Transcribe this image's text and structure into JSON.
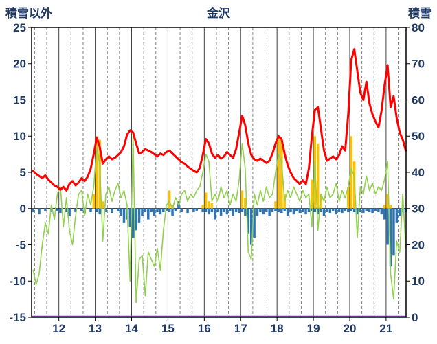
{
  "chart_data": {
    "type": "combo",
    "title": "金沢",
    "left_axis_title": "積雪以外",
    "right_axis_title": "積雪",
    "x_axis": {
      "min": 2011.25,
      "max": 2021.55,
      "tick_years": [
        2012,
        2013,
        2014,
        2015,
        2016,
        2017,
        2018,
        2019,
        2020,
        2021
      ],
      "tick_labels": [
        "12",
        "13",
        "14",
        "15",
        "16",
        "17",
        "18",
        "19",
        "20",
        "21"
      ]
    },
    "left_axis": {
      "min": -15,
      "max": 25,
      "step": 5,
      "ticks": [
        25,
        20,
        15,
        10,
        5,
        0,
        -5,
        -10,
        -15
      ]
    },
    "right_axis": {
      "min": 0,
      "max": 80,
      "step": 10,
      "ticks": [
        80,
        70,
        60,
        50,
        40,
        30,
        20,
        10,
        0
      ]
    },
    "x_start": 2011.292,
    "x_step": 0.083333,
    "grid": {
      "vertical_solid_color": "#404040",
      "vertical_dashed_color": "#808080",
      "zero_line_color": "#000000",
      "border_color": "#000000"
    },
    "series": [
      {
        "name": "snow-bars",
        "type": "bar",
        "axis": "left",
        "color": "#FFC000",
        "values": [
          0,
          0,
          0,
          0,
          0,
          0,
          0,
          0,
          0,
          0,
          0,
          0,
          0,
          0,
          0,
          0,
          0,
          0,
          0,
          0,
          2.0,
          10.0,
          9.5,
          1.0,
          0,
          0,
          0,
          0,
          0,
          0,
          0,
          0,
          0,
          0,
          0,
          0,
          0,
          0,
          0,
          0,
          0,
          0,
          0,
          0,
          0,
          2.5,
          0.5,
          0,
          0,
          0,
          0,
          0,
          0,
          0,
          0,
          0,
          0.5,
          2.2,
          1.0,
          0.8,
          0,
          0,
          0,
          0,
          0,
          0,
          0,
          0,
          0,
          2.5,
          1.5,
          0,
          0,
          0,
          0,
          0,
          0,
          0,
          0,
          0,
          1.0,
          9.8,
          9.5,
          2.0,
          0,
          0,
          0,
          0,
          0,
          0,
          0,
          0,
          4.0,
          10.0,
          9.0,
          2.0,
          0,
          0,
          0,
          0,
          0,
          0,
          0,
          0,
          3.0,
          10.0,
          6.5,
          0,
          0,
          0,
          0,
          0,
          0,
          0,
          0,
          0,
          0.5,
          2.0,
          0.5,
          0,
          0,
          0,
          0,
          0
        ]
      },
      {
        "name": "blue-bars",
        "type": "bar",
        "axis": "left",
        "color": "#2E75B6",
        "values": [
          -0.5,
          0,
          -0.8,
          0,
          -0.3,
          0,
          -0.5,
          0,
          -0.4,
          -0.6,
          0,
          -0.5,
          -1.0,
          0,
          -0.5,
          0,
          -0.3,
          -0.6,
          0,
          -0.5,
          0,
          -0.5,
          -0.8,
          0,
          -0.5,
          0,
          -0.6,
          0,
          -0.4,
          -1.0,
          -2.0,
          -1.5,
          -2.5,
          -4.0,
          -3.0,
          -2.0,
          -1.0,
          -0.5,
          -1.5,
          -0.5,
          -1.0,
          -0.5,
          -0.8,
          -0.5,
          -0.3,
          -0.5,
          -1.0,
          -0.4,
          1.0,
          -0.5,
          0,
          -0.6,
          0,
          -0.5,
          -0.3,
          0,
          -0.5,
          -0.5,
          -0.8,
          -0.5,
          -1.5,
          -0.5,
          -1.0,
          -0.5,
          -0.8,
          -0.4,
          -1.0,
          -0.5,
          -0.6,
          -0.5,
          -1.0,
          -3.5,
          -5.0,
          -4.0,
          -1.0,
          -0.5,
          -0.8,
          -0.5,
          -1.0,
          -0.5,
          -0.4,
          -0.5,
          -0.6,
          -0.4,
          -1.0,
          -0.5,
          -0.8,
          -0.4,
          -0.6,
          -0.5,
          -0.8,
          -0.5,
          -0.4,
          -0.5,
          -0.8,
          -0.5,
          -1.0,
          -0.5,
          -0.6,
          -0.4,
          -0.8,
          -0.5,
          -0.6,
          -0.4,
          -0.5,
          -0.4,
          -0.5,
          -0.8,
          -0.5,
          -0.6,
          -0.4,
          -0.5,
          -0.6,
          -0.4,
          -0.5,
          -0.8,
          -1.5,
          -5.0,
          -8.0,
          -6.5,
          -2.0,
          -1.0,
          -0.5,
          -0.5
        ]
      },
      {
        "name": "green-line",
        "type": "line",
        "axis": "left",
        "color": "#92D050",
        "stroke_width": 1.6,
        "values": [
          -8.5,
          -10.5,
          -9.0,
          -5.0,
          -2.0,
          -3.5,
          0.5,
          -1.5,
          2.0,
          3.0,
          -2.5,
          1.5,
          -3.0,
          -5.0,
          -1.0,
          2.0,
          2.5,
          -1.0,
          2.0,
          0.5,
          3.0,
          8.5,
          6.0,
          -4.5,
          2.0,
          3.0,
          1.0,
          2.5,
          3.5,
          1.5,
          2.5,
          0.5,
          -10.0,
          10.0,
          -13.0,
          -7.0,
          -6.5,
          -12.0,
          -6.0,
          -7.0,
          -8.0,
          -5.5,
          -8.5,
          -3.0,
          0.5,
          1.0,
          0.0,
          1.5,
          0.5,
          2.0,
          2.5,
          1.0,
          2.0,
          1.5,
          2.5,
          3.0,
          5.0,
          7.5,
          6.5,
          1.0,
          2.0,
          1.0,
          3.0,
          1.5,
          2.5,
          0.5,
          2.0,
          1.0,
          4.0,
          9.0,
          5.5,
          -6.0,
          -7.0,
          2.0,
          0.5,
          2.5,
          1.0,
          3.0,
          1.5,
          2.0,
          5.0,
          7.5,
          6.5,
          1.0,
          2.5,
          1.5,
          3.0,
          2.0,
          1.0,
          2.5,
          1.5,
          2.0,
          -2.5,
          6.5,
          -3.0,
          2.0,
          1.0,
          3.0,
          1.5,
          2.0,
          3.5,
          1.0,
          2.5,
          1.5,
          3.0,
          5.5,
          4.5,
          -4.0,
          3.0,
          2.0,
          4.5,
          2.5,
          3.5,
          2.0,
          3.0,
          2.5,
          4.0,
          6.5,
          -9.0,
          -12.5,
          -4.5,
          -6.0,
          2.0,
          -5.5
        ]
      },
      {
        "name": "red-line",
        "type": "line",
        "axis": "left",
        "color": "#FF0000",
        "stroke_width": 3,
        "values": [
          5.2,
          4.8,
          4.5,
          4.2,
          4.6,
          4.0,
          3.6,
          3.2,
          3.0,
          2.6,
          3.0,
          2.5,
          3.4,
          3.8,
          3.2,
          3.6,
          4.2,
          3.8,
          4.4,
          5.5,
          7.5,
          9.8,
          8.5,
          6.2,
          6.8,
          7.2,
          6.8,
          7.0,
          7.4,
          7.8,
          8.6,
          10.2,
          10.8,
          10.5,
          9.0,
          7.6,
          7.8,
          8.2,
          8.0,
          7.8,
          7.5,
          7.2,
          7.6,
          7.4,
          7.8,
          8.0,
          7.6,
          7.2,
          6.8,
          6.4,
          6.2,
          5.8,
          5.5,
          5.2,
          5.0,
          5.6,
          7.4,
          9.6,
          9.0,
          7.6,
          7.0,
          7.4,
          6.9,
          7.2,
          7.8,
          7.4,
          7.0,
          8.2,
          10.5,
          12.8,
          11.5,
          9.0,
          7.4,
          6.8,
          6.6,
          6.9,
          6.6,
          6.3,
          6.6,
          7.6,
          9.0,
          10.0,
          9.6,
          7.6,
          6.0,
          5.0,
          4.2,
          3.8,
          3.4,
          3.9,
          3.4,
          5.5,
          10.0,
          13.6,
          14.0,
          11.0,
          8.0,
          6.6,
          6.9,
          7.2,
          6.8,
          7.4,
          8.6,
          8.0,
          13.0,
          20.5,
          22.0,
          19.0,
          16.0,
          15.0,
          17.5,
          14.5,
          13.0,
          12.0,
          11.2,
          13.5,
          17.0,
          19.8,
          14.0,
          15.5,
          12.5,
          10.5,
          9.5,
          8.0
        ]
      },
      {
        "name": "purple-baseline",
        "type": "line",
        "axis": "right",
        "color": "#7030A0",
        "stroke_width": 2.5,
        "constant_value": 0
      }
    ]
  }
}
